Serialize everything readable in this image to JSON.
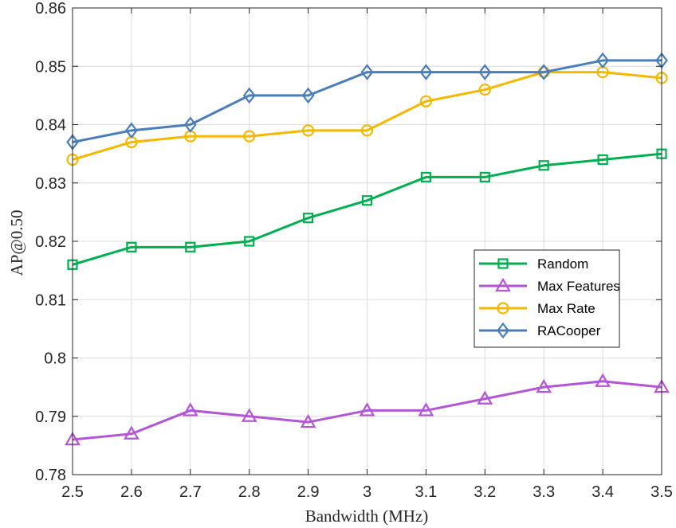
{
  "chart_data": {
    "type": "line",
    "xlabel": "Bandwidth (MHz)",
    "ylabel": "AP@0.50",
    "xlim": [
      2.5,
      3.5
    ],
    "ylim": [
      0.78,
      0.86
    ],
    "grid": true,
    "legend_position": "center-right",
    "x": [
      2.5,
      2.6,
      2.7,
      2.8,
      2.9,
      3.0,
      3.1,
      3.2,
      3.3,
      3.4,
      3.5
    ],
    "x_tick_labels": [
      "2.5",
      "2.6",
      "2.7",
      "2.8",
      "2.9",
      "3",
      "3.1",
      "3.2",
      "3.3",
      "3.4",
      "3.5"
    ],
    "y_ticks": [
      0.78,
      0.79,
      0.8,
      0.81,
      0.82,
      0.83,
      0.84,
      0.85,
      0.86
    ],
    "y_tick_labels": [
      "0.78",
      "0.79",
      "0.8",
      "0.81",
      "0.82",
      "0.83",
      "0.84",
      "0.85",
      "0.86"
    ],
    "series": [
      {
        "name": "Random",
        "color": "#00b050",
        "marker": "square",
        "values": [
          0.816,
          0.819,
          0.819,
          0.82,
          0.824,
          0.827,
          0.831,
          0.831,
          0.833,
          0.834,
          0.835
        ]
      },
      {
        "name": "Max Features",
        "color": "#b455d6",
        "marker": "triangle",
        "values": [
          0.786,
          0.787,
          0.791,
          0.79,
          0.789,
          0.791,
          0.791,
          0.793,
          0.795,
          0.796,
          0.795
        ]
      },
      {
        "name": "Max Rate",
        "color": "#f5b800",
        "marker": "circle",
        "values": [
          0.834,
          0.837,
          0.838,
          0.838,
          0.839,
          0.839,
          0.844,
          0.846,
          0.849,
          0.849,
          0.848
        ]
      },
      {
        "name": "RACooper",
        "color": "#4a7ebb",
        "marker": "diamond",
        "values": [
          0.837,
          0.839,
          0.84,
          0.845,
          0.845,
          0.849,
          0.849,
          0.849,
          0.849,
          0.851,
          0.851
        ]
      }
    ]
  }
}
